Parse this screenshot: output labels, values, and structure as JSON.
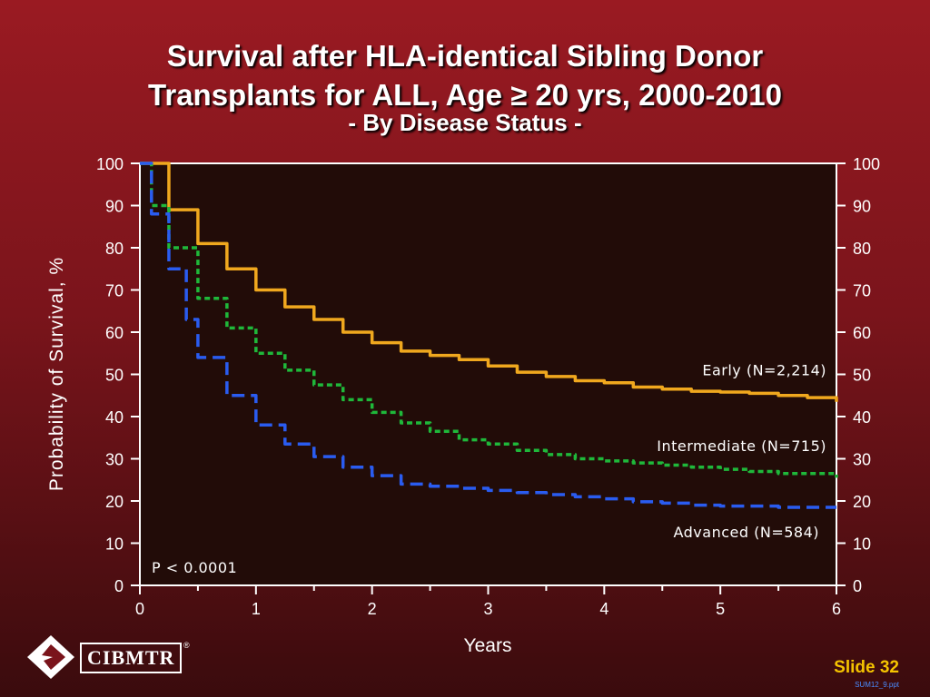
{
  "title": {
    "line1": "Survival after HLA-identical Sibling Donor",
    "line2": "Transplants for ALL, Age ≥ 20 yrs, 2000-2010",
    "subtitle": "- By Disease Status -"
  },
  "logo": {
    "text": "CIBMTR",
    "mark": "®",
    "icon": "diamond-logo-icon"
  },
  "footer": {
    "slide": "Slide 32",
    "file": "SUM12_9.ppt"
  },
  "colors": {
    "background": "#7a141b",
    "plot_background": "#220c08",
    "early": "#f0a81e",
    "intermediate": "#1fb83a",
    "advanced": "#2a5cf0",
    "slide_label": "#f5c400"
  },
  "chart_data": {
    "type": "line",
    "xlabel": "Years",
    "ylabel": "Probability of Survival, %",
    "xlim": [
      0,
      6
    ],
    "ylim": [
      0,
      100
    ],
    "xticks": [
      0,
      1,
      2,
      3,
      4,
      5,
      6
    ],
    "yticks": [
      0,
      10,
      20,
      30,
      40,
      50,
      60,
      70,
      80,
      90,
      100
    ],
    "grid": false,
    "annotation": "P < 0.0001",
    "series": [
      {
        "name": "Early (N=2,214)",
        "style": "solid",
        "x": [
          0,
          0.25,
          0.5,
          0.75,
          1,
          1.25,
          1.5,
          1.75,
          2,
          2.25,
          2.5,
          2.75,
          3,
          3.25,
          3.5,
          3.75,
          4,
          4.25,
          4.5,
          4.75,
          5,
          5.25,
          5.5,
          5.75,
          6
        ],
        "y": [
          100,
          89,
          81,
          75,
          70,
          66,
          63,
          60,
          57.5,
          55.5,
          54.5,
          53.5,
          52,
          50.5,
          49.5,
          48.5,
          48,
          47,
          46.5,
          46,
          45.8,
          45.5,
          45,
          44.5,
          43.5
        ]
      },
      {
        "name": "Intermediate (N=715)",
        "style": "dashed",
        "x": [
          0,
          0.1,
          0.25,
          0.5,
          0.75,
          1,
          1.25,
          1.5,
          1.75,
          2,
          2.25,
          2.5,
          2.75,
          3,
          3.25,
          3.5,
          3.75,
          4,
          4.25,
          4.5,
          4.75,
          5,
          5.25,
          5.5,
          5.75,
          6
        ],
        "y": [
          100,
          90,
          80,
          68,
          61,
          55,
          51,
          47.5,
          44,
          41,
          38.5,
          36.5,
          34.5,
          33.5,
          32,
          31,
          30,
          29.5,
          29,
          28.5,
          28,
          27.5,
          27,
          26.5,
          26.5,
          25.5
        ]
      },
      {
        "name": "Advanced (N=584)",
        "style": "dashed",
        "x": [
          0,
          0.1,
          0.25,
          0.4,
          0.5,
          0.75,
          1,
          1.25,
          1.5,
          1.75,
          2,
          2.25,
          2.5,
          2.75,
          3,
          3.25,
          3.5,
          3.75,
          4,
          4.25,
          4.5,
          4.75,
          5,
          5.25,
          5.5,
          5.75,
          6
        ],
        "y": [
          100,
          88,
          75,
          63,
          54,
          45,
          38,
          33.5,
          30.5,
          28,
          26,
          24,
          23.5,
          23,
          22.5,
          22,
          21.5,
          21,
          20.5,
          19.8,
          19.5,
          19,
          18.8,
          18.8,
          18.5,
          18.5,
          18.5
        ]
      }
    ]
  }
}
